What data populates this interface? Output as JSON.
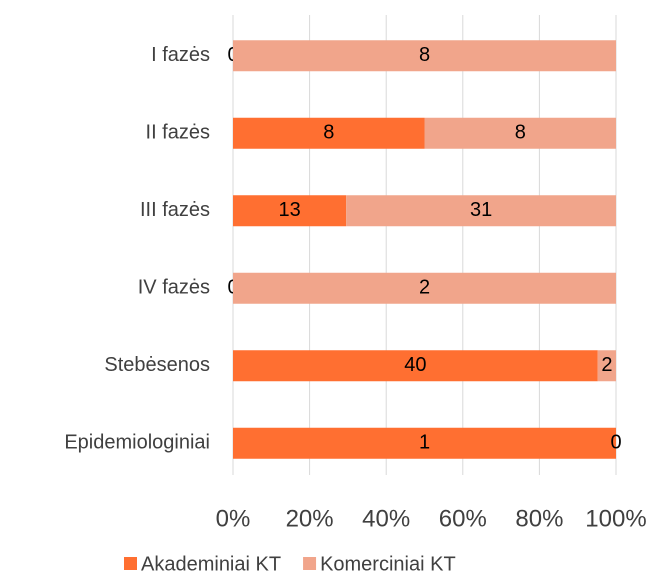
{
  "chart_data": {
    "type": "bar",
    "orientation": "horizontal",
    "stacked": "percent",
    "categories": [
      "I fazės",
      "II fazės",
      "III fazės",
      "IV fazės",
      "Stebėsenos",
      "Epidemiologiniai"
    ],
    "series": [
      {
        "name": "Akademiniai KT",
        "color": "#ff6f31",
        "values": [
          0,
          8,
          13,
          0,
          40,
          1
        ]
      },
      {
        "name": "Komerciniai KT",
        "color": "#f1a58b",
        "values": [
          8,
          8,
          31,
          2,
          2,
          0
        ]
      }
    ],
    "xlim": [
      0,
      100
    ],
    "xticks": [
      {
        "value": 0,
        "label": "0%"
      },
      {
        "value": 20,
        "label": "20%"
      },
      {
        "value": 40,
        "label": "40%"
      },
      {
        "value": 60,
        "label": "60%"
      },
      {
        "value": 80,
        "label": "80%"
      },
      {
        "value": 100,
        "label": "100%"
      }
    ],
    "grid": true,
    "legend": "bottom"
  }
}
